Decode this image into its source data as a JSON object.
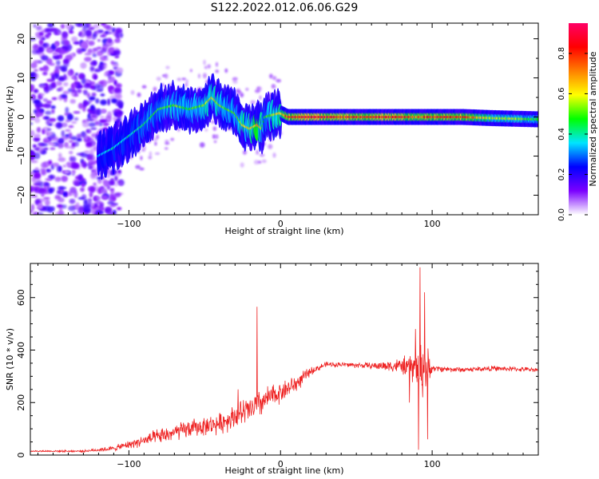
{
  "title": "S122.2022.012.06.06.G29",
  "chart_data": [
    {
      "type": "heatmap",
      "name": "spectrogram",
      "xlabel": "Height of straight line (km)",
      "ylabel": "Frequency (Hz)",
      "xlim": [
        -165,
        170
      ],
      "ylim": [
        -25,
        24
      ],
      "xticks": [
        -100,
        0,
        100
      ],
      "yticks": [
        -20,
        -10,
        0,
        10,
        20
      ],
      "colorbar": {
        "label": "Normalized spectral amplitude",
        "range": [
          0,
          0.95
        ],
        "ticks": [
          "0.0",
          "0.2",
          "0.4",
          "0.6",
          "0.8"
        ],
        "tick_values": [
          0,
          0.2,
          0.4,
          0.6,
          0.8
        ],
        "colormap": [
          "#ffffff",
          "#7b00ff",
          "#0000ff",
          "#00e5ff",
          "#00ff00",
          "#ffff00",
          "#ff8000",
          "#ff0000",
          "#ff0066"
        ]
      },
      "ridge": {
        "x": [
          -120,
          -110,
          -100,
          -90,
          -80,
          -70,
          -60,
          -50,
          -45,
          -40,
          -30,
          -25,
          -20,
          -15,
          -12,
          -10,
          0,
          5,
          10,
          20,
          40,
          60,
          80,
          90,
          100,
          120,
          140,
          160,
          170
        ],
        "freq": [
          -10,
          -8,
          -5,
          -2,
          2,
          3,
          2,
          3,
          5,
          3,
          1,
          -2,
          -3,
          -2,
          -3,
          0,
          1,
          0,
          0,
          0,
          0,
          0,
          0,
          0,
          0,
          0,
          -0.3,
          -0.5,
          -0.6
        ],
        "amplitude": [
          0.35,
          0.4,
          0.4,
          0.45,
          0.5,
          0.55,
          0.5,
          0.55,
          0.6,
          0.55,
          0.5,
          0.6,
          0.65,
          0.7,
          0.6,
          0.5,
          0.65,
          0.85,
          0.9,
          0.9,
          0.85,
          0.85,
          0.85,
          0.75,
          0.85,
          0.85,
          0.6,
          0.55,
          0.5
        ]
      }
    },
    {
      "type": "line",
      "name": "snr",
      "xlabel": "Height of straight line (km)",
      "ylabel": "SNR (10 * v/v)",
      "xlim": [
        -165,
        170
      ],
      "ylim": [
        0,
        730
      ],
      "xticks": [
        -100,
        0,
        100
      ],
      "yticks": [
        0,
        200,
        400,
        600
      ],
      "color": "#ee2222",
      "envelope": {
        "x": [
          -165,
          -130,
          -110,
          -100,
          -80,
          -60,
          -50,
          -40,
          -30,
          -20,
          -10,
          0,
          10,
          20,
          30,
          40,
          60,
          80,
          90,
          95,
          100,
          120,
          140,
          170
        ],
        "mean": [
          15,
          15,
          25,
          40,
          70,
          100,
          110,
          120,
          150,
          170,
          210,
          240,
          270,
          320,
          345,
          345,
          340,
          340,
          330,
          330,
          330,
          325,
          330,
          325
        ],
        "noise": [
          3,
          4,
          10,
          15,
          30,
          35,
          35,
          40,
          45,
          60,
          50,
          40,
          35,
          15,
          10,
          10,
          12,
          30,
          70,
          120,
          12,
          10,
          10,
          8
        ]
      },
      "spikes": [
        {
          "x": -15.5,
          "y": 565
        },
        {
          "x": -28,
          "y": 250
        },
        {
          "x": 92,
          "y": 715
        },
        {
          "x": 95,
          "y": 620
        },
        {
          "x": 91,
          "y": 20
        },
        {
          "x": 97,
          "y": 60
        },
        {
          "x": 89,
          "y": 480
        },
        {
          "x": 85,
          "y": 200
        }
      ]
    }
  ]
}
